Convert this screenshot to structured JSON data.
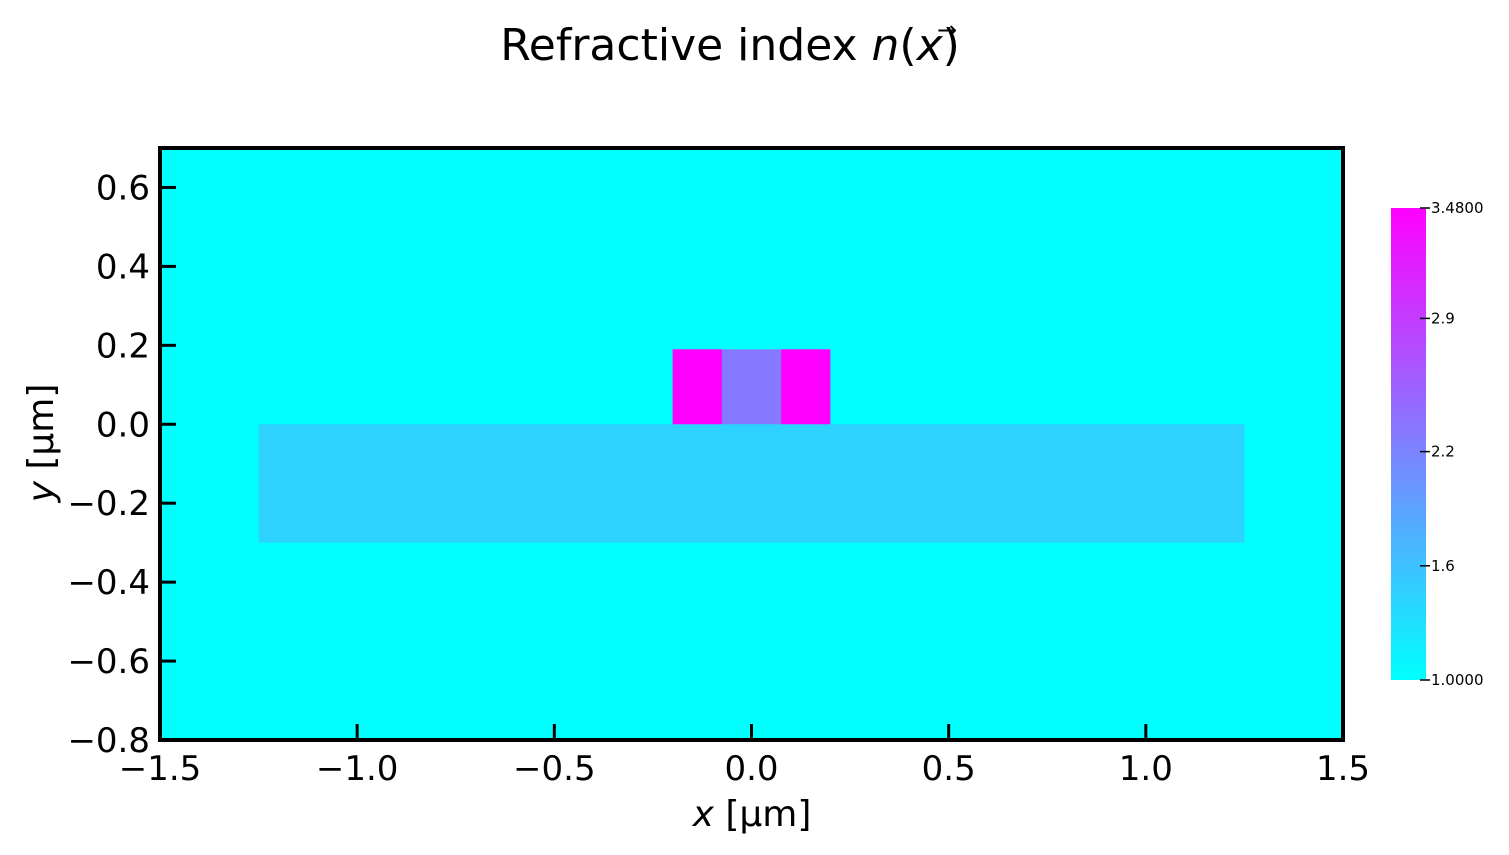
{
  "chart_data": {
    "type": "heatmap",
    "title": {
      "prefix": "Refractive index ",
      "symbol": "n",
      "open": "(",
      "arrow": "→",
      "var": "x",
      "close": ")"
    },
    "xlabel": {
      "var": "x",
      "unit": " [μm]"
    },
    "ylabel": {
      "var": "y",
      "unit": " [μm]"
    },
    "xlim": [
      -1.5,
      1.5
    ],
    "ylim": [
      -0.8,
      0.7
    ],
    "xticks": [
      {
        "value": -1.5,
        "label": "−1.5"
      },
      {
        "value": -1.0,
        "label": "−1.0"
      },
      {
        "value": -0.5,
        "label": "−0.5"
      },
      {
        "value": 0.0,
        "label": "0.0"
      },
      {
        "value": 0.5,
        "label": "0.5"
      },
      {
        "value": 1.0,
        "label": "1.0"
      },
      {
        "value": 1.5,
        "label": "1.5"
      }
    ],
    "yticks": [
      {
        "value": -0.8,
        "label": "−0.8"
      },
      {
        "value": -0.6,
        "label": "−0.6"
      },
      {
        "value": -0.4,
        "label": "−0.4"
      },
      {
        "value": -0.2,
        "label": "−0.2"
      },
      {
        "value": 0.0,
        "label": "0.0"
      },
      {
        "value": 0.2,
        "label": "0.2"
      },
      {
        "value": 0.4,
        "label": "0.4"
      },
      {
        "value": 0.6,
        "label": "0.6"
      }
    ],
    "background_n": 1.0,
    "regions": [
      {
        "name": "slab",
        "x": [
          -1.25,
          1.25
        ],
        "y": [
          -0.3,
          0.0
        ],
        "n": 1.44
      },
      {
        "name": "ridge-left",
        "x": [
          -0.2,
          -0.075
        ],
        "y": [
          0.0,
          0.19
        ],
        "n": 3.48
      },
      {
        "name": "ridge-center",
        "x": [
          -0.075,
          0.075
        ],
        "y": [
          0.0,
          0.19
        ],
        "n": 2.3
      },
      {
        "name": "ridge-right",
        "x": [
          0.075,
          0.2
        ],
        "y": [
          0.0,
          0.19
        ],
        "n": 3.48
      }
    ],
    "colorbar": {
      "colormap": "cool",
      "range": [
        1.0,
        3.48
      ],
      "ticks": [
        {
          "value": 3.48,
          "label": "3.4800"
        },
        {
          "value": 2.9,
          "label": "2.9"
        },
        {
          "value": 2.2,
          "label": "2.2"
        },
        {
          "value": 1.6,
          "label": "1.6"
        },
        {
          "value": 1.0,
          "label": "1.0000"
        }
      ]
    },
    "grid": false
  }
}
